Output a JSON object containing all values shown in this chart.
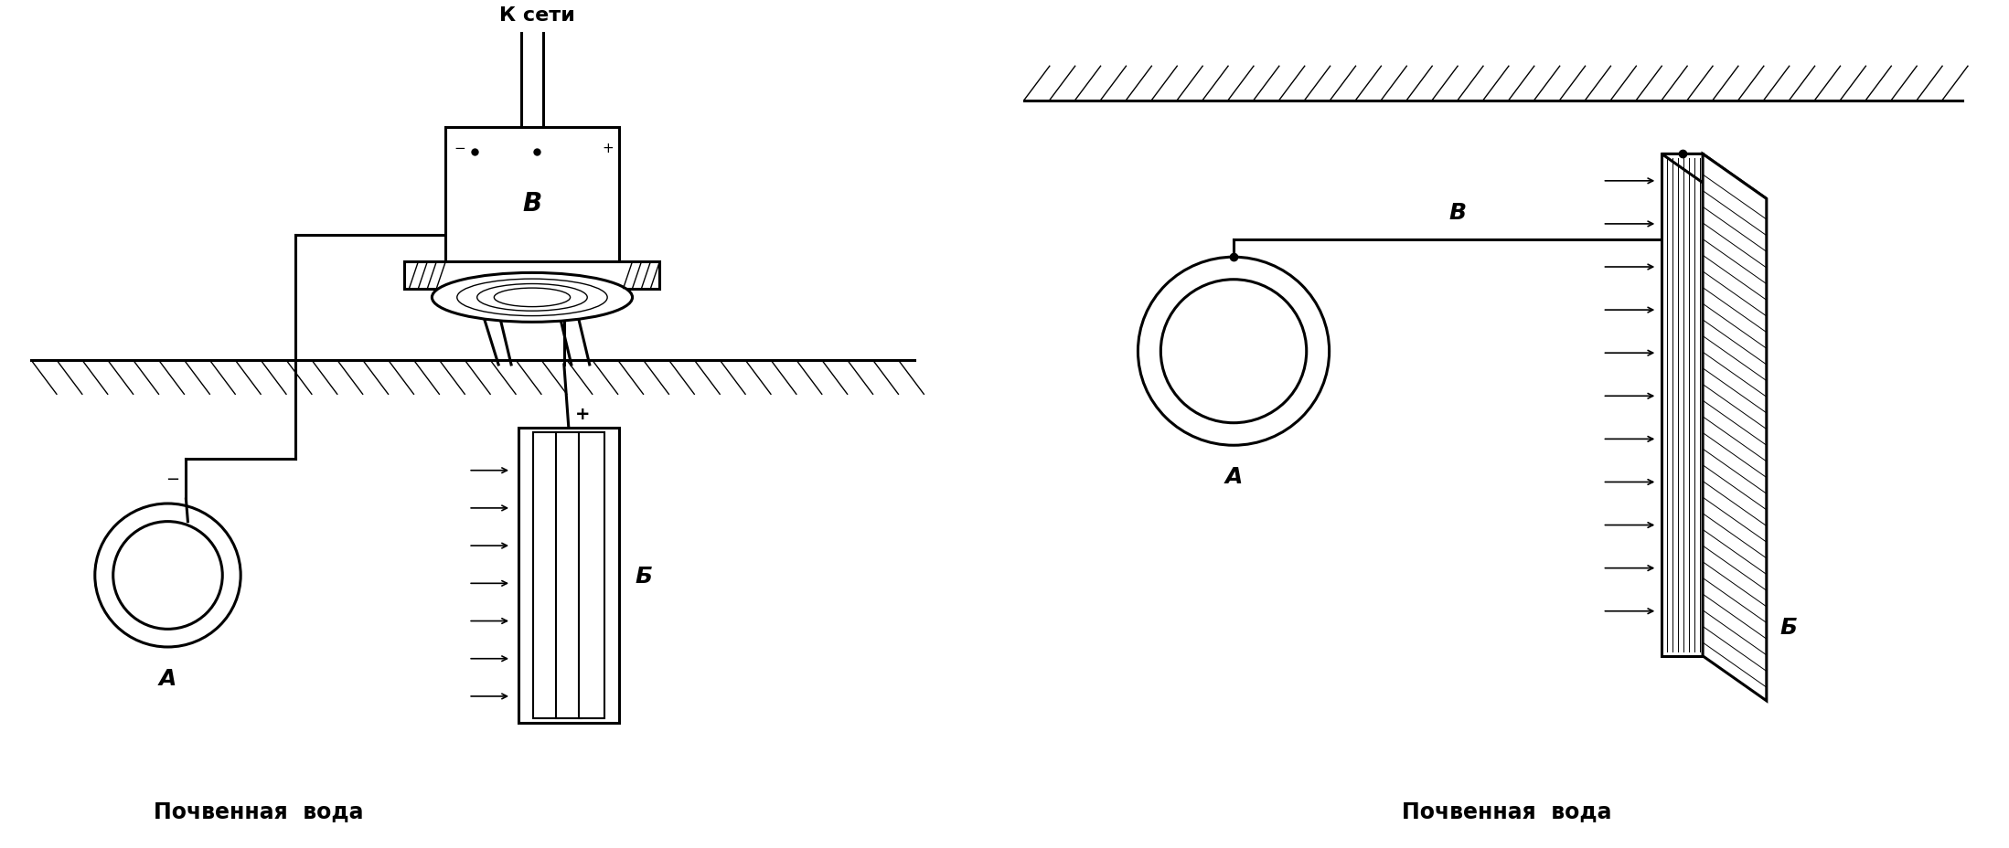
{
  "bg_color": "#ffffff",
  "line_color": "#000000",
  "fig_width": 21.97,
  "fig_height": 9.29,
  "label_A_left": "A",
  "label_Б_left": "Б",
  "label_minus": "−",
  "label_plus": "+",
  "label_K_seti": "К сети",
  "label_pochvennaya_voda_left": "Почвенная  вода",
  "label_B_right": "B",
  "label_A_right": "A",
  "label_Б_right": "Б",
  "label_pochvennaya_voda_right": "Почвенная  вода",
  "label_B_box": "B"
}
